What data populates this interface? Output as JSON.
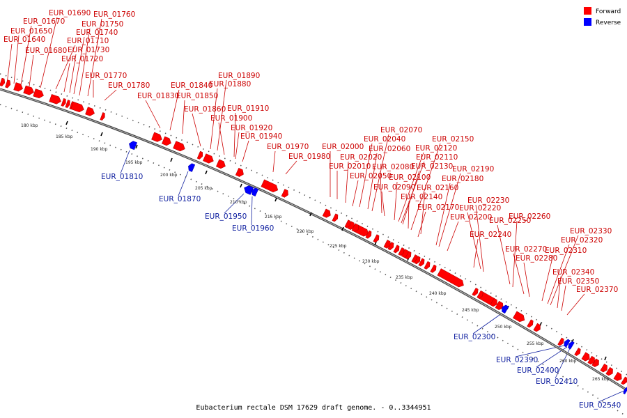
{
  "caption": "Eubacterium rectale DSM 17629 draft genome. - 0..3344951",
  "legend": [
    {
      "label": "Forward",
      "color": "#ff0000"
    },
    {
      "label": "Reverse",
      "color": "#0000ff"
    }
  ],
  "colors": {
    "forward": "#ff0000",
    "reverse": "#0000ff",
    "forward_label": "#cc0000",
    "reverse_label": "#1020a0",
    "backbone": "#777777"
  },
  "ticks": [
    "180 kbp",
    "185 kbp",
    "190 kbp",
    "195 kbp",
    "200 kbp",
    "205 kbp",
    "210 kbp",
    "215 kbp",
    "220 kbp",
    "225 kbp",
    "230 kbp",
    "235 kbp",
    "240 kbp",
    "245 kbp",
    "250 kbp",
    "255 kbp",
    "260 kbp",
    "265 kbp"
  ],
  "forward_genes": [
    "EUR_01640",
    "EUR_01650",
    "EUR_01670",
    "EUR_01680",
    "EUR_01690",
    "EUR_01710",
    "EUR_01720",
    "EUR_01730",
    "EUR_01740",
    "EUR_01750",
    "EUR_01760",
    "EUR_01770",
    "EUR_01780",
    "EUR_01830",
    "EUR_01840",
    "EUR_01850",
    "EUR_01860",
    "EUR_01880",
    "EUR_01890",
    "EUR_01900",
    "EUR_01910",
    "EUR_01920",
    "EUR_01940",
    "EUR_01970",
    "EUR_01980",
    "EUR_02000",
    "EUR_02010",
    "EUR_02020",
    "EUR_02040",
    "EUR_02050",
    "EUR_02060",
    "EUR_02070",
    "EUR_02080",
    "EUR_02090",
    "EUR_02100",
    "EUR_02110",
    "EUR_02120",
    "EUR_02130",
    "EUR_02140",
    "EUR_02150",
    "EUR_02160",
    "EUR_02170",
    "EUR_02180",
    "EUR_02190",
    "EUR_02200",
    "EUR_02220",
    "EUR_02230",
    "EUR_02240",
    "EUR_02250",
    "EUR_02260",
    "EUR_02270",
    "EUR_02280",
    "EUR_02310",
    "EUR_02320",
    "EUR_02330",
    "EUR_02340",
    "EUR_02350",
    "EUR_02370"
  ],
  "reverse_genes": [
    "EUR_01810",
    "EUR_01870",
    "EUR_01950",
    "EUR_01960",
    "EUR_02300",
    "EUR_02390",
    "EUR_02400",
    "EUR_02410",
    "EUR_02540"
  ]
}
